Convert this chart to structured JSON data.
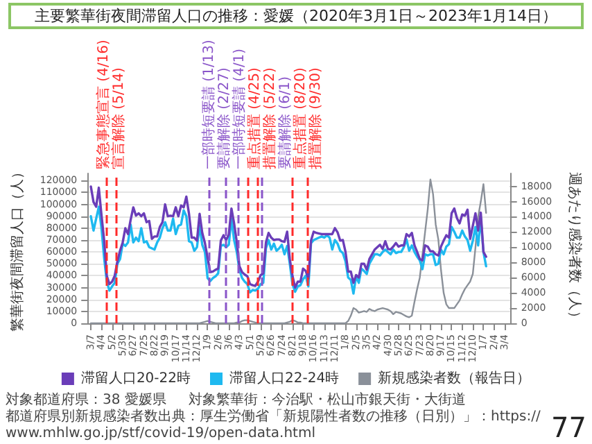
{
  "chart_data": {
    "type": "line",
    "title": "主要繁華街夜間滞留人口の推移：愛媛（2020年3月1日～2023年1月14日）",
    "ylabel": "繁華街夜間滞留人口（人）",
    "y2label": "週あたり感染者数（人）",
    "x": [
      "2020-03-07",
      "2020-03-14",
      "2020-03-21",
      "2020-03-28",
      "2020-04-04",
      "2020-04-11",
      "2020-04-18",
      "2020-04-25",
      "2020-05-02",
      "2020-05-09",
      "2020-05-16",
      "2020-05-23",
      "2020-05-30",
      "2020-06-06",
      "2020-06-13",
      "2020-06-20",
      "2020-06-27",
      "2020-07-04",
      "2020-07-11",
      "2020-07-18",
      "2020-07-25",
      "2020-08-01",
      "2020-08-08",
      "2020-08-15",
      "2020-08-22",
      "2020-08-29",
      "2020-09-05",
      "2020-09-12",
      "2020-09-19",
      "2020-09-26",
      "2020-10-03",
      "2020-10-10",
      "2020-10-17",
      "2020-10-24",
      "2020-10-31",
      "2020-11-07",
      "2020-11-14",
      "2020-11-21",
      "2020-11-28",
      "2020-12-05",
      "2020-12-12",
      "2020-12-19",
      "2020-12-26",
      "2021-01-02",
      "2021-01-09",
      "2021-01-16",
      "2021-01-23",
      "2021-01-30",
      "2021-02-06",
      "2021-02-13",
      "2021-02-20",
      "2021-02-27",
      "2021-03-06",
      "2021-03-13",
      "2021-03-20",
      "2021-03-27",
      "2021-04-03",
      "2021-04-10",
      "2021-04-17",
      "2021-04-24",
      "2021-05-01",
      "2021-05-08",
      "2021-05-15",
      "2021-05-22",
      "2021-05-29",
      "2021-06-05",
      "2021-06-12",
      "2021-06-19",
      "2021-06-26",
      "2021-07-03",
      "2021-07-10",
      "2021-07-17",
      "2021-07-24",
      "2021-07-31",
      "2021-08-07",
      "2021-08-14",
      "2021-08-21",
      "2021-08-28",
      "2021-09-04",
      "2021-09-11",
      "2021-09-18",
      "2021-09-25",
      "2021-10-02",
      "2021-10-09",
      "2021-10-16",
      "2021-10-23",
      "2021-10-30",
      "2021-11-06",
      "2021-11-13",
      "2021-11-20",
      "2021-11-27",
      "2021-12-04",
      "2021-12-11",
      "2021-12-18",
      "2021-12-25",
      "2022-01-01",
      "2022-01-08",
      "2022-01-15",
      "2022-01-22",
      "2022-01-29",
      "2022-02-05",
      "2022-02-12",
      "2022-02-19",
      "2022-02-26",
      "2022-03-05",
      "2022-03-12",
      "2022-03-19",
      "2022-03-26",
      "2022-04-02",
      "2022-04-09",
      "2022-04-16",
      "2022-04-23",
      "2022-04-30",
      "2022-05-07",
      "2022-05-14",
      "2022-05-21",
      "2022-05-28",
      "2022-06-04",
      "2022-06-11",
      "2022-06-18",
      "2022-06-25",
      "2022-07-02",
      "2022-07-09",
      "2022-07-16",
      "2022-07-23",
      "2022-07-30",
      "2022-08-06",
      "2022-08-13",
      "2022-08-20",
      "2022-08-27",
      "2022-09-03",
      "2022-09-10",
      "2022-09-17",
      "2022-09-24",
      "2022-10-01",
      "2022-10-08",
      "2022-10-15",
      "2022-10-22",
      "2022-10-29",
      "2022-11-05",
      "2022-11-12",
      "2022-11-19",
      "2022-11-26",
      "2022-12-03",
      "2022-12-10",
      "2022-12-17",
      "2022-12-24",
      "2022-12-31",
      "2023-01-07",
      "2023-01-14"
    ],
    "series": [
      {
        "name": "滞留人口20-22時",
        "color": "#6a3db8",
        "values": [
          115000,
          102000,
          98000,
          114000,
          91000,
          70000,
          40000,
          33000,
          35000,
          40000,
          52000,
          61000,
          68000,
          80000,
          75000,
          87000,
          97500,
          90500,
          92500,
          90000,
          92500,
          85000,
          86000,
          71000,
          73000,
          73000,
          81000,
          85000,
          100000,
          90000,
          90500,
          90000,
          97500,
          90000,
          99000,
          97500,
          106500,
          92000,
          72000,
          72000,
          69500,
          92000,
          76000,
          67500,
          55000,
          43000,
          43500,
          45000,
          46000,
          69500,
          74000,
          70000,
          74500,
          96500,
          84000,
          68500,
          48000,
          43000,
          41000,
          39500,
          33000,
          32000,
          31500,
          35000,
          40500,
          42000,
          68000,
          76000,
          72000,
          70000,
          70500,
          70500,
          69000,
          68500,
          77000,
          54000,
          40000,
          30000,
          35000,
          35000,
          46000,
          44000,
          37500,
          69500,
          77000,
          76000,
          75500,
          75000,
          75000,
          75000,
          75000,
          75000,
          80000,
          76500,
          69500,
          70000,
          60000,
          43500,
          43500,
          34000,
          40500,
          38500,
          50000,
          50000,
          45000,
          54000,
          58000,
          62000,
          64000,
          66000,
          62500,
          69000,
          62500,
          62000,
          64500,
          67500,
          64500,
          65500,
          65500,
          75000,
          73000,
          76000,
          65500,
          60000,
          54000,
          53000,
          65500,
          64500,
          60500,
          60500,
          58000,
          57000,
          64500,
          69500,
          74000,
          72000,
          92500,
          96500,
          88500,
          84000,
          91500,
          90500,
          95500,
          71000,
          82000,
          92500,
          78000,
          93000,
          60000,
          56000
        ]
      },
      {
        "name": "滞留人口22-24時",
        "color": "#1eb9f0",
        "values": [
          90000,
          78000,
          88000,
          98000,
          80000,
          55000,
          35000,
          27500,
          31000,
          34000,
          50000,
          54000,
          67000,
          65000,
          68000,
          83000,
          68000,
          72000,
          69000,
          80000,
          68000,
          69000,
          64000,
          63000,
          62000,
          68000,
          72000,
          80000,
          85000,
          78000,
          78000,
          88000,
          75000,
          82000,
          83000,
          95000,
          90000,
          69000,
          68000,
          61000,
          64000,
          82000,
          66000,
          60000,
          38000,
          35500,
          38000,
          39500,
          42000,
          65000,
          66000,
          64000,
          66000,
          88000,
          70000,
          60000,
          45000,
          38000,
          35000,
          33000,
          26000,
          28000,
          27500,
          29000,
          33000,
          34000,
          63000,
          70000,
          62000,
          67000,
          61000,
          63000,
          66000,
          58000,
          65000,
          50000,
          33000,
          26500,
          31000,
          32000,
          37000,
          40000,
          31000,
          67500,
          70000,
          71000,
          72000,
          73000,
          72000,
          74000,
          72000,
          62000,
          70000,
          67000,
          61000,
          59000,
          52000,
          38500,
          36500,
          25000,
          39500,
          34000,
          46000,
          44000,
          41500,
          50000,
          54000,
          58000,
          58000,
          57000,
          60000,
          62000,
          60000,
          58000,
          62000,
          59000,
          60000,
          60000,
          64000,
          70500,
          61000,
          65500,
          60000,
          56000,
          53000,
          45500,
          58000,
          57000,
          58000,
          58000,
          49000,
          50000,
          62000,
          58000,
          64500,
          66500,
          81000,
          77000,
          72000,
          72000,
          78000,
          73000,
          70000,
          61000,
          69500,
          81000,
          65500,
          88500,
          60000,
          48000
        ]
      },
      {
        "name": "新規感染者数（報告日）",
        "color": "#8a9099",
        "axis": "y2",
        "values": [
          0,
          0,
          0,
          0,
          0,
          0,
          0,
          0,
          0,
          0,
          0,
          0,
          0,
          0,
          0,
          0,
          0,
          0,
          0,
          0,
          0,
          0,
          0,
          0,
          0,
          0,
          0,
          0,
          0,
          0,
          0,
          0,
          0,
          0,
          0,
          0,
          0,
          0,
          0,
          0,
          0,
          0,
          100,
          200,
          300,
          200,
          100,
          0,
          0,
          0,
          0,
          0,
          0,
          0,
          0,
          100,
          100,
          300,
          400,
          400,
          300,
          200,
          100,
          0,
          0,
          0,
          0,
          0,
          0,
          0,
          0,
          0,
          0,
          0,
          100,
          200,
          400,
          300,
          100,
          100,
          0,
          0,
          0,
          0,
          0,
          0,
          0,
          0,
          0,
          0,
          0,
          0,
          0,
          0,
          0,
          0,
          0,
          300,
          1000,
          2000,
          1800,
          1400,
          1500,
          1600,
          1500,
          1900,
          1700,
          1600,
          1800,
          1900,
          2000,
          1900,
          1800,
          1600,
          1200,
          1500,
          1400,
          1300,
          1100,
          900,
          800,
          1000,
          2800,
          4500,
          6000,
          9000,
          12000,
          15000,
          18900,
          17000,
          13000,
          11000,
          7000,
          4000,
          2500,
          2000,
          2000,
          2000,
          2500,
          3000,
          3800,
          4500,
          5000,
          5500,
          6500,
          10000,
          14000,
          16000,
          18300,
          14500
        ]
      }
    ],
    "xlim": [
      "2020-02-29",
      "2023-03-18"
    ],
    "xticks": [
      {
        "value": "2020-03-07",
        "label": "3/7"
      },
      {
        "value": "2020-04-04",
        "label": "4/4"
      },
      {
        "value": "2020-05-02",
        "label": "5/2"
      },
      {
        "value": "2020-05-30",
        "label": "5/30"
      },
      {
        "value": "2020-06-27",
        "label": "6/27"
      },
      {
        "value": "2020-07-25",
        "label": "7/25"
      },
      {
        "value": "2020-08-22",
        "label": "8/22"
      },
      {
        "value": "2020-09-19",
        "label": "9/19"
      },
      {
        "value": "2020-10-17",
        "label": "10/17"
      },
      {
        "value": "2020-11-14",
        "label": "11/14"
      },
      {
        "value": "2020-12-12",
        "label": "12/12"
      },
      {
        "value": "2021-01-09",
        "label": "1/9"
      },
      {
        "value": "2021-02-06",
        "label": "2/6"
      },
      {
        "value": "2021-03-06",
        "label": "3/6"
      },
      {
        "value": "2021-04-03",
        "label": "4/3"
      },
      {
        "value": "2021-05-01",
        "label": "5/1"
      },
      {
        "value": "2021-05-29",
        "label": "5/29"
      },
      {
        "value": "2021-06-26",
        "label": "6/26"
      },
      {
        "value": "2021-07-24",
        "label": "7/24"
      },
      {
        "value": "2021-08-21",
        "label": "8/21"
      },
      {
        "value": "2021-09-18",
        "label": "9/18"
      },
      {
        "value": "2021-10-16",
        "label": "10/16"
      },
      {
        "value": "2021-11-13",
        "label": "11/13"
      },
      {
        "value": "2021-12-11",
        "label": "12/11"
      },
      {
        "value": "2022-01-08",
        "label": "1/8"
      },
      {
        "value": "2022-02-05",
        "label": "2/5"
      },
      {
        "value": "2022-03-05",
        "label": "3/5"
      },
      {
        "value": "2022-04-02",
        "label": "4/2"
      },
      {
        "value": "2022-04-30",
        "label": "4/30"
      },
      {
        "value": "2022-05-28",
        "label": "5/28"
      },
      {
        "value": "2022-06-25",
        "label": "6/25"
      },
      {
        "value": "2022-07-23",
        "label": "7/23"
      },
      {
        "value": "2022-08-20",
        "label": "8/20"
      },
      {
        "value": "2022-09-17",
        "label": "9/17"
      },
      {
        "value": "2022-10-15",
        "label": "10/15"
      },
      {
        "value": "2022-11-12",
        "label": "11/12"
      },
      {
        "value": "2022-12-10",
        "label": "12/10"
      },
      {
        "value": "2023-01-07",
        "label": "1/7"
      },
      {
        "value": "2023-02-04",
        "label": "2/4"
      },
      {
        "value": "2023-03-04",
        "label": "3/4"
      }
    ],
    "ylim": [
      0,
      126000
    ],
    "yticks": [
      0,
      10000,
      20000,
      30000,
      40000,
      50000,
      60000,
      70000,
      80000,
      90000,
      100000,
      110000,
      120000
    ],
    "y2lim": [
      0,
      19700
    ],
    "y2ticks": [
      0,
      2000,
      4000,
      6000,
      8000,
      10000,
      12000,
      14000,
      16000,
      18000
    ],
    "ref_lines": [
      {
        "axis": "x",
        "value": "2020-04-16",
        "label": "緊急事態宣言 (4/16)",
        "color": "#ff2a2a",
        "line_style": "dashed"
      },
      {
        "axis": "x",
        "value": "2020-05-14",
        "label": "宣言解除 (5/14)",
        "color": "#ff2a2a",
        "line_style": "dashed"
      },
      {
        "axis": "x",
        "value": "2021-01-13",
        "label": "一部時短要請 (1/13)",
        "color": "#8a55c9",
        "line_style": "dashed"
      },
      {
        "axis": "x",
        "value": "2021-02-27",
        "label": "要請解除 (2/27)",
        "color": "#8a55c9",
        "line_style": "dashed"
      },
      {
        "axis": "x",
        "value": "2021-04-01",
        "label": "一部時短要請 (4/1)",
        "color": "#8a55c9",
        "line_style": "dashed"
      },
      {
        "axis": "x",
        "value": "2021-04-25",
        "label": "重点措置 (4/25)",
        "color": "#ff2a2a",
        "line_style": "dashed"
      },
      {
        "axis": "x",
        "value": "2021-05-22",
        "label": "措置解除 (5/22)",
        "color": "#ff2a2a",
        "line_style": "dashed"
      },
      {
        "axis": "x",
        "value": "2021-06-01",
        "label": "要請解除 (6/1)",
        "color": "#8a55c9",
        "line_style": "dashed"
      },
      {
        "axis": "x",
        "value": "2021-08-20",
        "label": "重点措置 (8/20)",
        "color": "#ff2a2a",
        "line_style": "dashed"
      },
      {
        "axis": "x",
        "value": "2021-09-30",
        "label": "措置解除 (9/30)",
        "color": "#ff2a2a",
        "line_style": "dashed"
      }
    ],
    "annotations": [
      "対象都道府県：38 愛媛県",
      "対象繁華街：今治駅・松山市銀天街・大街道",
      "都道府県別新規感染者数出典：厚生労働省「新規陽性者数の推移（日別）」：https://www.mhlw.go.jp/stf/covid-19/open-data.html",
      "77"
    ],
    "grid": "y",
    "legend": "bottom",
    "marker": "none",
    "line_style": "solid"
  }
}
